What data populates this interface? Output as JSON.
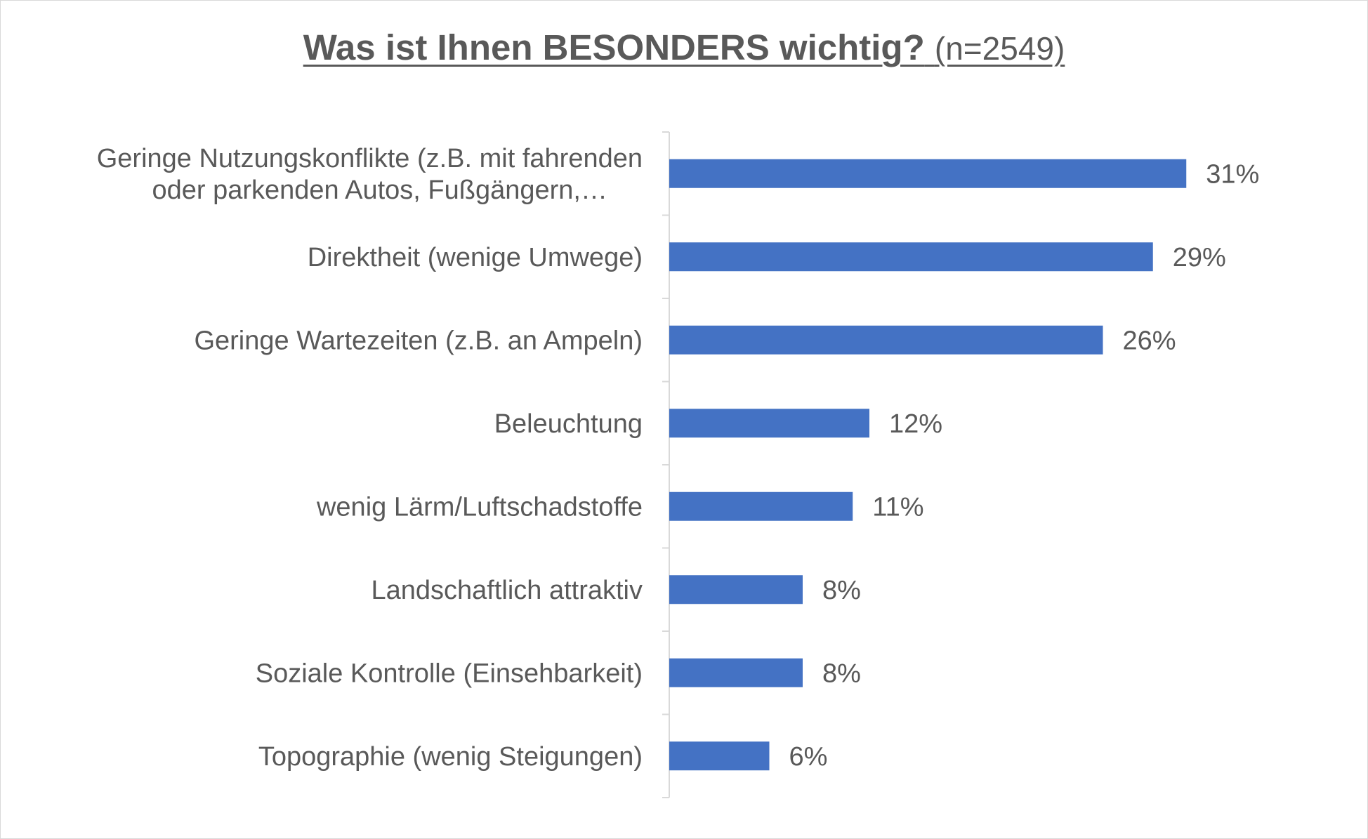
{
  "chart_data": {
    "type": "bar",
    "orientation": "horizontal",
    "title": "Was ist Ihnen BESONDERS wichtig?",
    "subtitle": "(n=2549)",
    "categories": [
      [
        "Geringe Nutzungskonflikte (z.B. mit fahrenden",
        "oder parkenden Autos, Fußgängern,…"
      ],
      [
        "Direktheit (wenige Umwege)"
      ],
      [
        "Geringe Wartezeiten (z.B. an Ampeln)"
      ],
      [
        "Beleuchtung"
      ],
      [
        "wenig Lärm/Luftschadstoffe"
      ],
      [
        "Landschaftlich attraktiv"
      ],
      [
        "Soziale Kontrolle (Einsehbarkeit)"
      ],
      [
        "Topographie (wenig Steigungen)"
      ]
    ],
    "values": [
      31,
      29,
      26,
      12,
      11,
      8,
      8,
      6
    ],
    "data_labels": [
      "31%",
      "29%",
      "26%",
      "12%",
      "11%",
      "8%",
      "8%",
      "6%"
    ],
    "unit": "%",
    "xlim": [
      0,
      32
    ],
    "grid": false,
    "legend": "none",
    "bar_color": "#4472c4"
  }
}
